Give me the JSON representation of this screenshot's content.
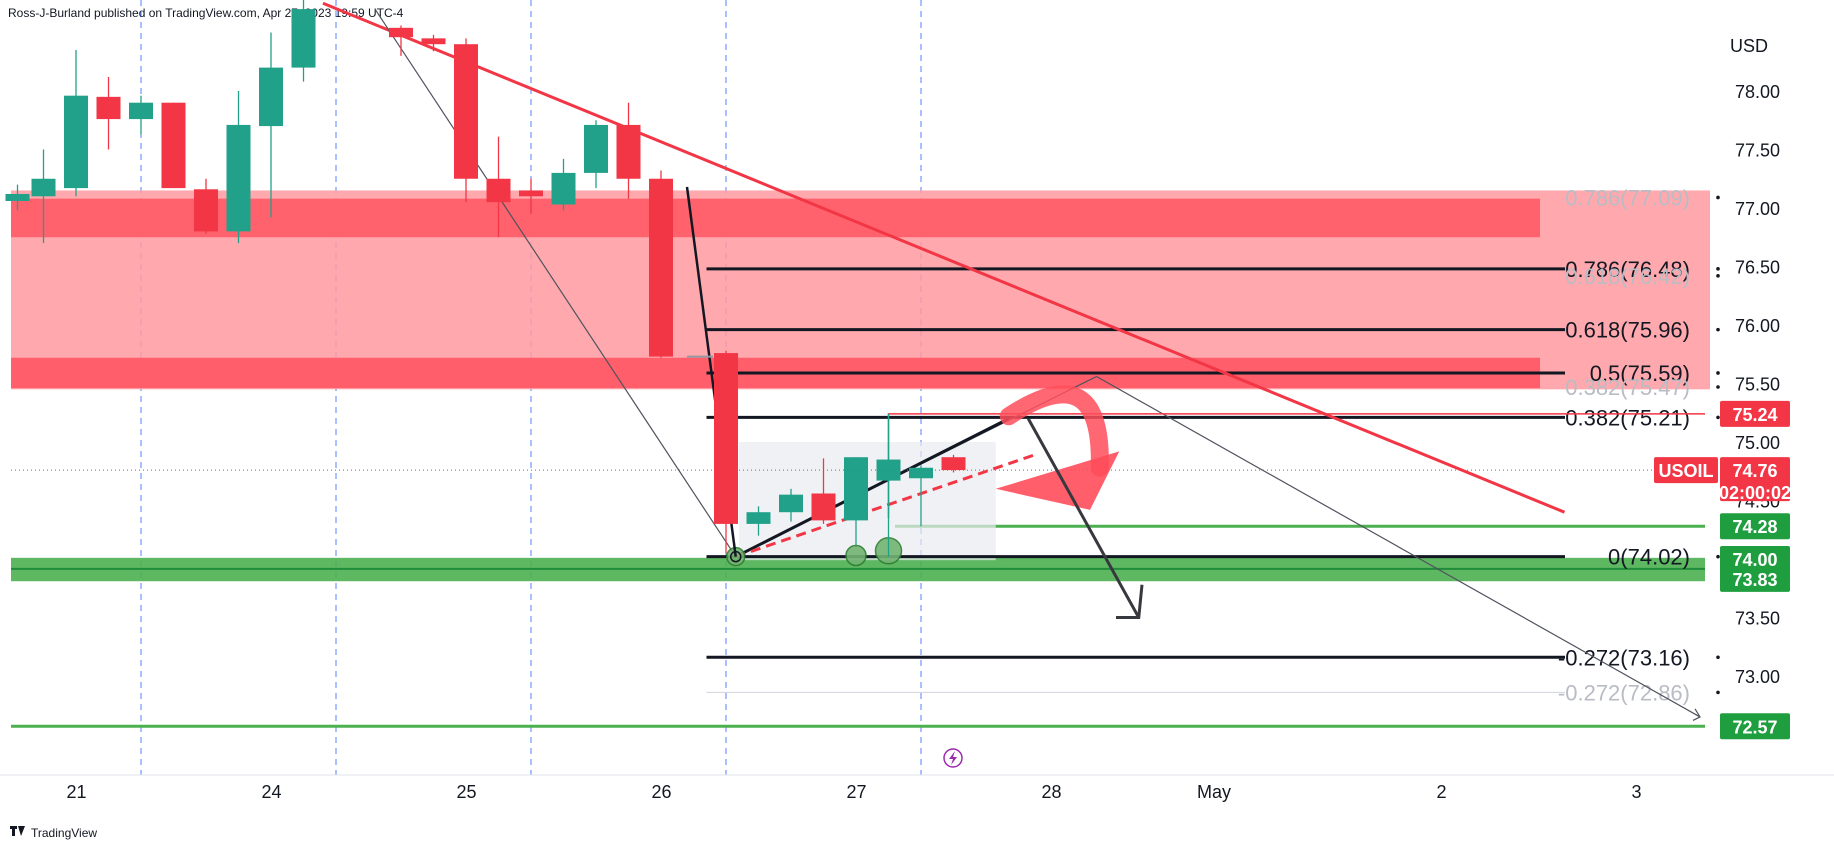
{
  "header": {
    "text": "Ross-J-Burland published on TradingView.com, Apr 27, 2023 19:59 UTC-4"
  },
  "footer": {
    "brand": "TradingView",
    "logo": "tradingview-logo-icon"
  },
  "colors": {
    "bull": "#22a18a",
    "bear": "#f23645",
    "trendline": "#f23645",
    "support": "#4caf50",
    "resistance_fill": "#ff9aa0",
    "resistance_band": "#ff5a66",
    "fib_line": "#131722",
    "grid_dash": "#2962ff",
    "price_badge": "#f23645",
    "support_badge": "#1e9e3e"
  },
  "chart_data": {
    "type": "candlestick",
    "title": "",
    "symbol": "USOIL",
    "currency": "USD",
    "ylim": [
      72.0,
      78.5
    ],
    "y_ticks": [
      "78.00",
      "77.50",
      "77.00",
      "76.50",
      "76.00",
      "75.50",
      "75.00",
      "74.50",
      "74.00",
      "73.50",
      "73.00"
    ],
    "x_ticks": [
      {
        "label": "21",
        "t": 1
      },
      {
        "label": "24",
        "t": 7
      },
      {
        "label": "25",
        "t": 13
      },
      {
        "label": "26",
        "t": 19
      },
      {
        "label": "27",
        "t": 25
      },
      {
        "label": "28",
        "t": 31
      },
      {
        "label": "May",
        "t": 36
      },
      {
        "label": "2",
        "t": 43
      },
      {
        "label": "3",
        "t": 49
      }
    ],
    "session_dividers": [
      4,
      10,
      16,
      22,
      28
    ],
    "candles": [
      {
        "t": 0.2,
        "o": 77.06,
        "h": 77.2,
        "l": 76.98,
        "c": 77.12
      },
      {
        "t": 1.0,
        "o": 77.1,
        "h": 77.5,
        "l": 76.7,
        "c": 77.25
      },
      {
        "t": 2.0,
        "o": 77.17,
        "h": 78.35,
        "l": 77.1,
        "c": 77.96
      },
      {
        "t": 3.0,
        "o": 77.95,
        "h": 78.12,
        "l": 77.5,
        "c": 77.76
      },
      {
        "t": 4.0,
        "o": 77.76,
        "h": 77.96,
        "l": 77.63,
        "c": 77.9
      },
      {
        "t": 5.0,
        "o": 77.9,
        "h": 77.9,
        "l": 77.17,
        "c": 77.17
      },
      {
        "t": 6.0,
        "o": 77.16,
        "h": 77.25,
        "l": 76.78,
        "c": 76.8
      },
      {
        "t": 7.0,
        "o": 76.8,
        "h": 78.0,
        "l": 76.7,
        "c": 77.71
      },
      {
        "t": 8.0,
        "o": 77.7,
        "h": 78.5,
        "l": 76.92,
        "c": 78.2
      },
      {
        "t": 9.0,
        "o": 78.2,
        "h": 78.8,
        "l": 78.08,
        "c": 78.7
      },
      {
        "t": 12.0,
        "o": 78.54,
        "h": 78.56,
        "l": 78.3,
        "c": 78.46
      },
      {
        "t": 13.0,
        "o": 78.45,
        "h": 78.48,
        "l": 78.34,
        "c": 78.4
      },
      {
        "t": 14.0,
        "o": 78.4,
        "h": 78.45,
        "l": 77.05,
        "c": 77.25
      },
      {
        "t": 15.0,
        "o": 77.25,
        "h": 77.61,
        "l": 76.75,
        "c": 77.05
      },
      {
        "t": 16.0,
        "o": 77.15,
        "h": 77.25,
        "l": 76.95,
        "c": 77.1
      },
      {
        "t": 17.0,
        "o": 77.03,
        "h": 77.42,
        "l": 76.98,
        "c": 77.3
      },
      {
        "t": 18.0,
        "o": 77.3,
        "h": 77.75,
        "l": 77.17,
        "c": 77.71
      },
      {
        "t": 19.0,
        "o": 77.71,
        "h": 77.9,
        "l": 77.08,
        "c": 77.25
      },
      {
        "t": 20.0,
        "o": 77.25,
        "h": 77.32,
        "l": 75.72,
        "c": 75.73
      },
      {
        "t": 22.0,
        "o": 75.76,
        "h": 75.78,
        "l": 74.05,
        "c": 74.3
      },
      {
        "t": 23.0,
        "o": 74.3,
        "h": 74.45,
        "l": 74.2,
        "c": 74.4
      },
      {
        "t": 24.0,
        "o": 74.4,
        "h": 74.6,
        "l": 74.32,
        "c": 74.55
      },
      {
        "t": 25.0,
        "o": 74.56,
        "h": 74.86,
        "l": 74.3,
        "c": 74.33
      },
      {
        "t": 26.0,
        "o": 74.33,
        "h": 74.87,
        "l": 74.12,
        "c": 74.87
      },
      {
        "t": 27.0,
        "o": 74.67,
        "h": 75.24,
        "l": 74.02,
        "c": 74.85
      },
      {
        "t": 28.0,
        "o": 74.69,
        "h": 74.8,
        "l": 74.28,
        "c": 74.78
      },
      {
        "t": 29.0,
        "o": 74.87,
        "h": 74.89,
        "l": 74.74,
        "c": 74.76
      }
    ],
    "current_price": {
      "label": "USOIL",
      "value": "74.76",
      "countdown": "02:00:02",
      "y": 74.76
    },
    "price_badges": [
      {
        "text": "75.24",
        "y": 75.24,
        "kind": "bear"
      },
      {
        "text": "74.28",
        "y": 74.28,
        "kind": "support"
      },
      {
        "text": "74.00",
        "y": 74.0,
        "kind": "support"
      },
      {
        "text": "73.83",
        "y": 73.83,
        "kind": "support"
      },
      {
        "text": "72.57",
        "y": 72.57,
        "kind": "support"
      }
    ],
    "fib_levels": [
      {
        "text": "0.786(77.09)",
        "y": 77.09,
        "faded": true,
        "line": false
      },
      {
        "text": "0.786(76.48)",
        "y": 76.48,
        "faded": false,
        "line": true
      },
      {
        "text": "0.618(76.42)",
        "y": 76.42,
        "faded": true,
        "line": false
      },
      {
        "text": "0.618(75.96)",
        "y": 75.96,
        "faded": false,
        "line": true
      },
      {
        "text": "0.5(75.59)",
        "y": 75.59,
        "faded": false,
        "line": true
      },
      {
        "text": "0.382(75.47)",
        "y": 75.47,
        "faded": true,
        "line": false
      },
      {
        "text": "0.382(75.21)",
        "y": 75.21,
        "faded": false,
        "line": true
      },
      {
        "text": "0(74.02)",
        "y": 74.02,
        "faded": false,
        "line": true
      },
      {
        "text": "-0.272(73.16)",
        "y": 73.16,
        "faded": false,
        "line": true
      },
      {
        "text": "-0.272(72.86)",
        "y": 72.86,
        "faded": true,
        "line": true
      }
    ],
    "zones": {
      "resistance_outer": [
        75.45,
        77.15
      ],
      "resistance_band_top": [
        76.75,
        77.08
      ],
      "resistance_band_bottom": [
        75.46,
        75.72
      ],
      "support_band": [
        73.81,
        74.01
      ],
      "support_line": 72.57
    },
    "trendline": {
      "from": {
        "t": 9.6,
        "y": 78.75
      },
      "to": {
        "t": 47.8,
        "y": 74.4
      }
    }
  }
}
